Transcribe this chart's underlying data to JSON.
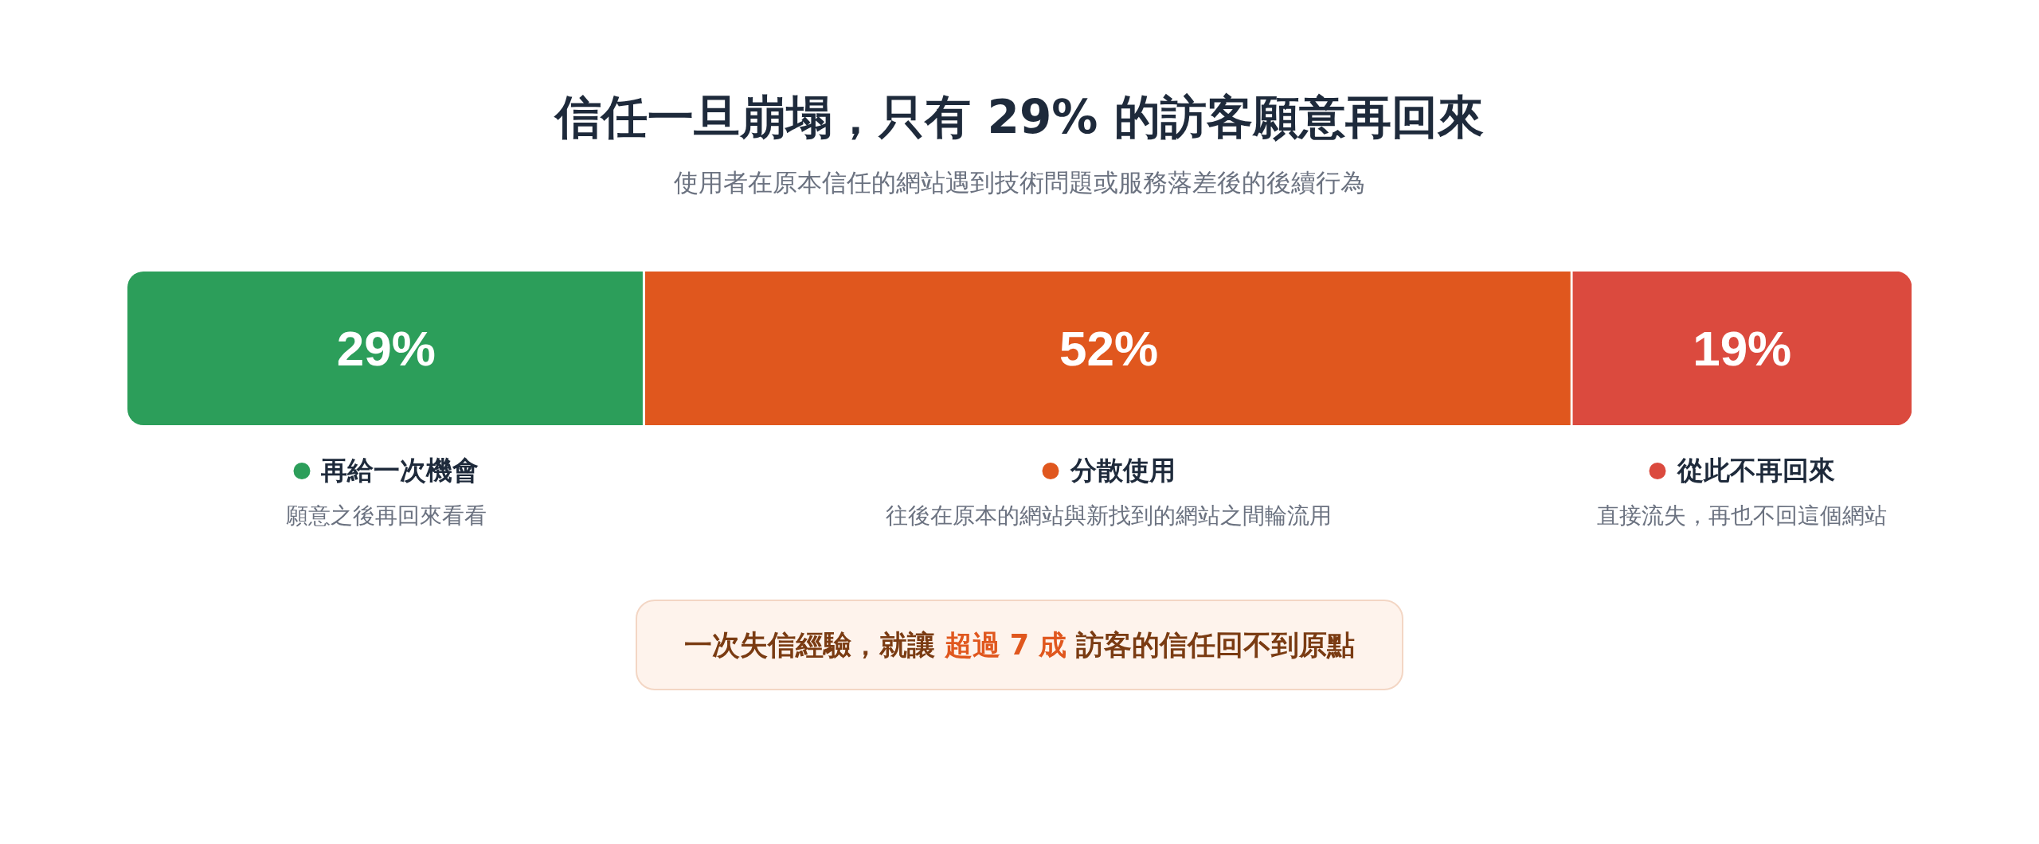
{
  "chart_data": {
    "type": "bar",
    "title": "信任一旦崩塌，只有 29% 的訪客願意再回來",
    "subtitle": "使用者在原本信任的網站遇到技術問題或服務落差後的後續行為",
    "orientation": "horizontal",
    "stacked": true,
    "categories": [
      null
    ],
    "series": [
      {
        "name": "再給一次機會",
        "color": "#2c9e5a",
        "values": [
          29
        ],
        "value_labels": [
          "29%"
        ]
      },
      {
        "name": "分散使用",
        "color": "#e0571e",
        "values": [
          52
        ],
        "value_labels": [
          "52%"
        ]
      },
      {
        "name": "從此不再回來",
        "color": "#db4a3e",
        "values": [
          19
        ],
        "value_labels": [
          "19%"
        ]
      }
    ],
    "xlim": [
      0,
      100
    ],
    "tick_labels": false,
    "legend": "bottom",
    "annotations": [
      "願意之後再回來看看",
      "往後在原本的網站與新找到的網站之間輪流用",
      "直接流失，再也不回這個網站",
      "一次失信經驗，就讓",
      "超過 7 成",
      "訪客的信任回不到原點"
    ]
  }
}
